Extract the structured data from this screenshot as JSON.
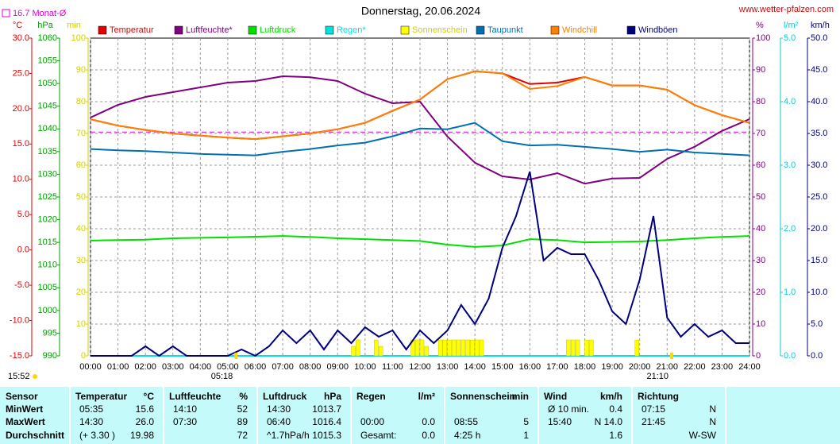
{
  "chart_data": {
    "type": "line",
    "title": "Donnerstag, 20.06.2024",
    "site": "www.wetter-pfalzen.com",
    "month_avg": {
      "value": 16.7,
      "label": "16.7 Monat-Ø",
      "color": "#e000e0"
    },
    "current_time": "15:52",
    "sunrise": {
      "x": 5.3,
      "label": "05:18"
    },
    "sunset": {
      "x": 21.167,
      "label": "21:10"
    },
    "grid": true,
    "xlim": [
      0,
      24
    ],
    "xticks": [
      {
        "value": 0,
        "label": "00:00"
      },
      {
        "value": 1,
        "label": "01:00"
      },
      {
        "value": 2,
        "label": "02:00"
      },
      {
        "value": 3,
        "label": "03:00"
      },
      {
        "value": 4,
        "label": "04:00"
      },
      {
        "value": 5,
        "label": "05:00"
      },
      {
        "value": 6,
        "label": "06:00"
      },
      {
        "value": 7,
        "label": "07:00"
      },
      {
        "value": 8,
        "label": "08:00"
      },
      {
        "value": 9,
        "label": "09:00"
      },
      {
        "value": 10,
        "label": "10:00"
      },
      {
        "value": 11,
        "label": "11:00"
      },
      {
        "value": 12,
        "label": "12:00"
      },
      {
        "value": 13,
        "label": "13:00"
      },
      {
        "value": 14,
        "label": "14:00"
      },
      {
        "value": 15,
        "label": "15:00"
      },
      {
        "value": 16,
        "label": "16:00"
      },
      {
        "value": 17,
        "label": "17:00"
      },
      {
        "value": 18,
        "label": "18:00"
      },
      {
        "value": 19,
        "label": "19:00"
      },
      {
        "value": 20,
        "label": "20:00"
      },
      {
        "value": 21,
        "label": "21:00"
      },
      {
        "value": 22,
        "label": "22:00"
      },
      {
        "value": 23,
        "label": "23:00"
      },
      {
        "value": 24,
        "label": "24:00"
      }
    ],
    "axes": {
      "C": {
        "label": "°C",
        "side": "left",
        "color": "#e00000",
        "lim": [
          -15,
          30
        ],
        "ticks": [
          {
            "value": -15,
            "label": "-15.0"
          },
          {
            "value": -10,
            "label": "-10.0"
          },
          {
            "value": -5,
            "label": "-5.0"
          },
          {
            "value": 0,
            "label": "0.0"
          },
          {
            "value": 5,
            "label": "5.0"
          },
          {
            "value": 10,
            "label": "10.0"
          },
          {
            "value": 15,
            "label": "15.0"
          },
          {
            "value": 20,
            "label": "20.0"
          },
          {
            "value": 25,
            "label": "25.0"
          },
          {
            "value": 30,
            "label": "30.0"
          }
        ]
      },
      "hPa": {
        "label": "hPa",
        "side": "left",
        "color": "#00a000",
        "lim": [
          990,
          1060
        ],
        "ticks": [
          990,
          995,
          1000,
          1005,
          1010,
          1015,
          1020,
          1025,
          1030,
          1035,
          1040,
          1045,
          1050,
          1055,
          1060
        ]
      },
      "min": {
        "label": "min",
        "side": "left",
        "color": "#d0d000",
        "lim": [
          0,
          100
        ],
        "ticks": [
          0,
          10,
          20,
          30,
          40,
          50,
          60,
          70,
          80,
          90,
          100
        ]
      },
      "pct": {
        "label": "%",
        "side": "right",
        "color": "#800080",
        "lim": [
          0,
          100
        ],
        "ticks": [
          0,
          10,
          20,
          30,
          40,
          50,
          60,
          70,
          80,
          90,
          100
        ]
      },
      "rain": {
        "label": "l/m²",
        "side": "right",
        "color": "#00d0d0",
        "lim": [
          0,
          5
        ],
        "ticks": [
          {
            "value": 0,
            "label": "0.0"
          },
          {
            "value": 1,
            "label": "1.0"
          },
          {
            "value": 2,
            "label": "2.0"
          },
          {
            "value": 3,
            "label": "3.0"
          },
          {
            "value": 4,
            "label": "4.0"
          },
          {
            "value": 5,
            "label": "5.0"
          }
        ]
      },
      "kmh": {
        "label": "km/h",
        "side": "right",
        "color": "#000080",
        "lim": [
          0,
          50
        ],
        "ticks": [
          {
            "value": 0,
            "label": "0.0"
          },
          {
            "value": 5,
            "label": "5.0"
          },
          {
            "value": 10,
            "label": "10.0"
          },
          {
            "value": 15,
            "label": "15.0"
          },
          {
            "value": 20,
            "label": "20.0"
          },
          {
            "value": 25,
            "label": "25.0"
          },
          {
            "value": 30,
            "label": "30.0"
          },
          {
            "value": 35,
            "label": "35.0"
          },
          {
            "value": 40,
            "label": "40.0"
          },
          {
            "value": 45,
            "label": "45.0"
          },
          {
            "value": 50,
            "label": "50.0"
          }
        ]
      }
    },
    "x": [
      0,
      1,
      2,
      3,
      4,
      5,
      6,
      7,
      8,
      9,
      10,
      11,
      12,
      13,
      14,
      15,
      16,
      17,
      18,
      19,
      20,
      21,
      22,
      23,
      24
    ],
    "series": [
      {
        "name": "Temperatur",
        "color": "#e00000",
        "type": "line",
        "axis": "C",
        "values": [
          18.5,
          17.6,
          17.0,
          16.5,
          16.2,
          15.9,
          15.7,
          16.1,
          16.5,
          17.1,
          18.0,
          19.7,
          21.3,
          24.2,
          25.3,
          25.0,
          23.5,
          23.7,
          24.5,
          23.3,
          23.3,
          22.7,
          20.5,
          19.1,
          18.0
        ]
      },
      {
        "name": "Luftfeuchte*",
        "color": "#800080",
        "type": "line",
        "axis": "pct",
        "values": [
          75,
          79,
          81.5,
          83,
          84.5,
          86,
          86.5,
          88,
          87.7,
          86.5,
          82.5,
          79.5,
          80,
          69,
          60.8,
          56.5,
          55.5,
          57.5,
          54.2,
          55.8,
          56,
          62,
          65.8,
          70.8,
          74.5
        ]
      },
      {
        "name": "Luftdruck",
        "color": "#00e000",
        "type": "line",
        "axis": "hPa",
        "values": [
          1015.4,
          1015.5,
          1015.6,
          1015.9,
          1016.0,
          1016.1,
          1016.25,
          1016.4,
          1016.2,
          1015.9,
          1015.7,
          1015.5,
          1015.3,
          1014.5,
          1014.0,
          1014.3,
          1015.7,
          1015.5,
          1015.0,
          1015.1,
          1015.2,
          1015.5,
          1015.9,
          1016.2,
          1016.4
        ]
      },
      {
        "name": "Regen*",
        "color": "#00e0e0",
        "type": "line",
        "axis": "rain",
        "x": [
          0,
          24
        ],
        "values": [
          0,
          0
        ]
      },
      {
        "name": "Sonnenschein",
        "color": "#ffff00",
        "type": "bar",
        "axis": "min",
        "x": [
          9.5,
          9.67,
          10.33,
          10.5,
          11.67,
          11.83,
          12.0,
          12.17,
          12.67,
          12.83,
          13.0,
          13.17,
          13.33,
          13.5,
          13.67,
          13.83,
          14.0,
          14.17,
          17.33,
          17.5,
          17.67,
          18.0,
          18.17,
          19.83
        ],
        "values": [
          3,
          5,
          5,
          3,
          5,
          5,
          5,
          3,
          5,
          5,
          5,
          5,
          5,
          5,
          5,
          5,
          5,
          5,
          5,
          5,
          5,
          5,
          5,
          5
        ]
      },
      {
        "name": "Taupunkt",
        "color": "#0070b0",
        "type": "line",
        "axis": "C",
        "values": [
          14.3,
          14.1,
          14.0,
          13.8,
          13.6,
          13.5,
          13.4,
          13.9,
          14.3,
          14.8,
          15.2,
          16.1,
          17.2,
          17.1,
          18.0,
          15.4,
          14.8,
          14.9,
          14.6,
          14.3,
          13.9,
          14.2,
          13.8,
          13.6,
          13.4
        ]
      },
      {
        "name": "Windchill",
        "color": "#ff8000",
        "type": "line",
        "axis": "C",
        "values": [
          18.5,
          17.6,
          17.0,
          16.5,
          16.2,
          15.9,
          15.7,
          16.1,
          16.5,
          17.1,
          18.0,
          19.7,
          21.3,
          24.2,
          25.3,
          25.0,
          22.8,
          23.2,
          24.5,
          23.3,
          23.3,
          22.7,
          20.5,
          19.1,
          18.0
        ]
      },
      {
        "name": "Windböen",
        "color": "#000080",
        "type": "line",
        "axis": "kmh",
        "x": [
          0,
          0.5,
          1,
          1.5,
          2,
          2.5,
          3,
          3.5,
          4,
          4.5,
          5,
          5.5,
          6,
          6.5,
          7,
          7.5,
          8,
          8.5,
          9,
          9.5,
          10,
          10.5,
          11,
          11.5,
          12,
          12.5,
          13,
          13.5,
          14,
          14.5,
          15,
          15.5,
          16,
          16.5,
          17,
          17.5,
          18,
          18.5,
          19,
          19.5,
          20,
          20.5,
          21,
          21.5,
          22,
          22.5,
          23,
          23.5,
          24
        ],
        "values": [
          0,
          0,
          0,
          0,
          1.5,
          0,
          1.5,
          0,
          0,
          0,
          0,
          1,
          0,
          1.5,
          4,
          2,
          4,
          1,
          4,
          2,
          4.5,
          3,
          4,
          1,
          4,
          2,
          4,
          8,
          5,
          9,
          17,
          22,
          29,
          15,
          17,
          16,
          16,
          12,
          7,
          5,
          12,
          22,
          6,
          3,
          5,
          3,
          4,
          2,
          2
        ]
      }
    ]
  },
  "table": {
    "columns": [
      {
        "name": "Sensor"
      },
      {
        "name": "Temperatur",
        "unit": "°C"
      },
      {
        "name": "Luftfeuchte",
        "unit": "%"
      },
      {
        "name": "Luftdruck",
        "unit": "hPa"
      },
      {
        "name": "Regen",
        "unit": "l/m²"
      },
      {
        "name": "Sonnenschein",
        "unit": "min"
      },
      {
        "name": "Wind",
        "unit": "km/h"
      },
      {
        "name": "Richtung"
      }
    ],
    "rows": [
      {
        "label": "MinWert",
        "cells": [
          [
            "05:35",
            "15.6"
          ],
          [
            "14:10",
            "52"
          ],
          [
            "14:30",
            "1013.7"
          ],
          [
            null,
            null
          ],
          [
            null,
            null
          ],
          [
            "Ø 10 min.",
            "0.4"
          ],
          [
            "07:15",
            "N"
          ]
        ]
      },
      {
        "label": "MaxWert",
        "cells": [
          [
            "14:30",
            "26.0"
          ],
          [
            "07:30",
            "89"
          ],
          [
            "06:40",
            "1016.4"
          ],
          [
            "00:00",
            "0.0"
          ],
          [
            "08:55",
            "5"
          ],
          [
            "15:40",
            "N 14.0"
          ],
          [
            "21:45",
            "N"
          ]
        ]
      },
      {
        "label": "Durchschnitt",
        "cells": [
          [
            "(+ 3.30 )",
            "19.98"
          ],
          [
            null,
            "72"
          ],
          [
            "^1.7hPa/h",
            "1015.3"
          ],
          [
            "Gesamt:",
            "0.0"
          ],
          [
            "4:25 h",
            "1"
          ],
          [
            null,
            "1.6"
          ],
          [
            null,
            "W-SW"
          ]
        ]
      }
    ]
  }
}
